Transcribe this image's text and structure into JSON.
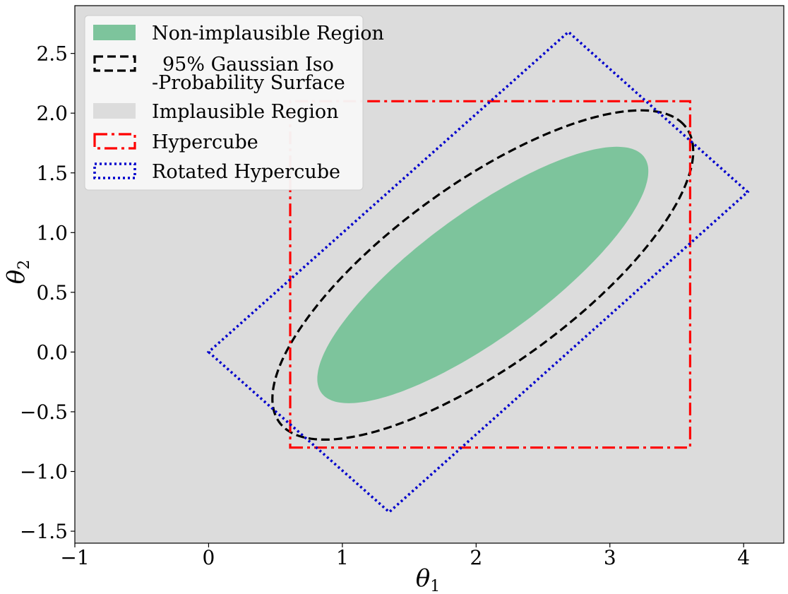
{
  "chart_data": {
    "type": "line",
    "title": "",
    "xlabel": "θ",
    "xlabel_sub": "1",
    "ylabel": "θ",
    "ylabel_sub": "2",
    "xlim": [
      -1,
      4.3
    ],
    "ylim": [
      -1.6,
      2.9
    ],
    "xticks": [
      -1,
      0,
      1,
      2,
      3,
      4
    ],
    "xtick_labels": [
      "−1",
      "0",
      "1",
      "2",
      "3",
      "4"
    ],
    "yticks": [
      -1.5,
      -1.0,
      -0.5,
      0.0,
      0.5,
      1.0,
      1.5,
      2.0,
      2.5
    ],
    "ytick_labels": [
      "−1.5",
      "−1.0",
      "−0.5",
      "0.0",
      "0.5",
      "1.0",
      "1.5",
      "2.0",
      "2.5"
    ],
    "grid": false,
    "legend_position": "top-left",
    "background_color": "#dcdcdc",
    "series": [
      {
        "name": "Non-implausible Region",
        "kind": "filled-ellipse",
        "color": "#7dc49c",
        "center": [
          2.05,
          0.645
        ],
        "semi_axes": [
          1.56,
          0.5
        ],
        "angle_deg": 40
      },
      {
        "name": "95% Gaussian Iso -Probability Surface",
        "kind": "dashed-ellipse",
        "color": "#000000",
        "center": [
          2.05,
          0.645
        ],
        "semi_axes": [
          1.96,
          0.73
        ],
        "angle_deg": 40
      },
      {
        "name": "Implausible Region",
        "kind": "background",
        "color": "#dcdcdc"
      },
      {
        "name": "Hypercube",
        "kind": "dashdot-polygon",
        "color": "#ff0000",
        "points": [
          [
            0.61,
            -0.8
          ],
          [
            3.6,
            -0.8
          ],
          [
            3.6,
            2.1
          ],
          [
            0.61,
            2.1
          ]
        ]
      },
      {
        "name": "Rotated Hypercube",
        "kind": "dotted-polygon",
        "color": "#0000cc",
        "points": [
          [
            0.0,
            0.0
          ],
          [
            1.35,
            -1.34
          ],
          [
            4.03,
            1.34
          ],
          [
            2.69,
            2.68
          ]
        ]
      }
    ],
    "legend": [
      {
        "label": "Non-implausible Region",
        "style": "fill",
        "color": "#7dc49c"
      },
      {
        "label": "95% Gaussian Iso",
        "label2": "-Probability Surface",
        "style": "dashed",
        "color": "#000000"
      },
      {
        "label": "Implausible Region",
        "style": "fill",
        "color": "#dcdcdc"
      },
      {
        "label": "Hypercube",
        "style": "dashdot",
        "color": "#ff0000"
      },
      {
        "label": "Rotated Hypercube",
        "style": "dotted",
        "color": "#0000cc"
      }
    ]
  }
}
